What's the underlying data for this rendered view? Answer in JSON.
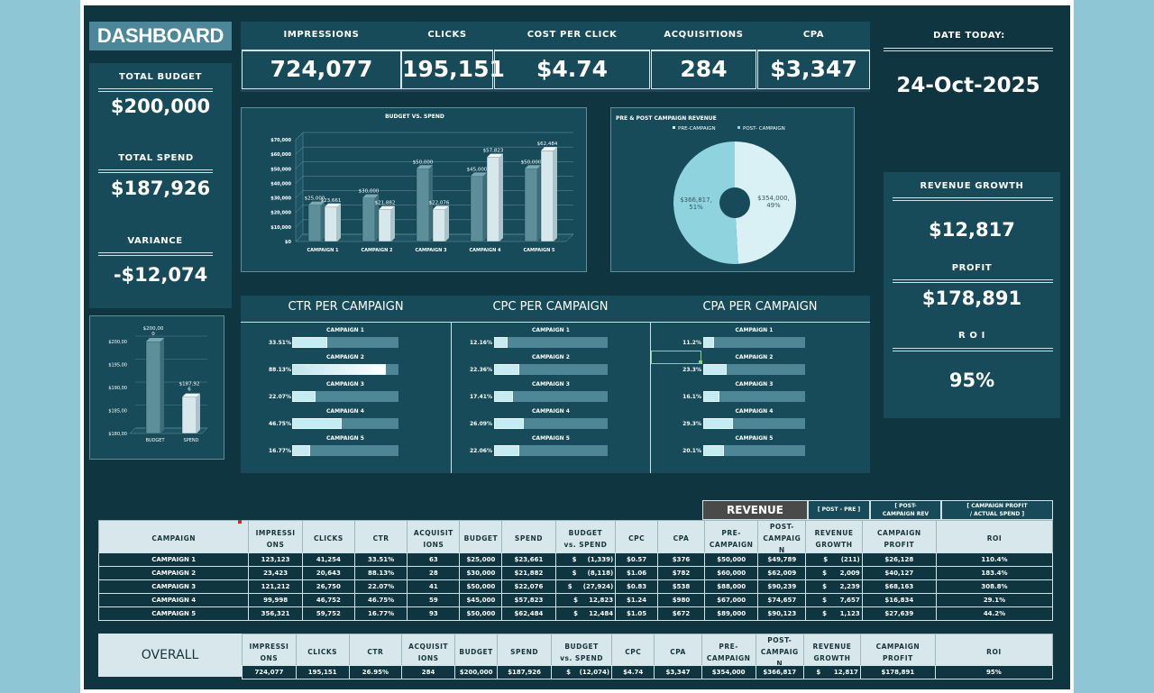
{
  "title": "DASHBOARD",
  "left_panel": {
    "total_budget_label": "TOTAL BUDGET",
    "total_budget": "$200,000",
    "total_spend_label": "TOTAL SPEND",
    "total_spend": "$187,926",
    "variance_label": "VARIANCE",
    "variance": "-$12,074"
  },
  "kpis": [
    {
      "label": "IMPRESSIONS",
      "value": "724,077"
    },
    {
      "label": "CLICKS",
      "value": "195,151"
    },
    {
      "label": "COST PER CLICK",
      "value": "$4.74"
    },
    {
      "label": "ACQUISITIONS",
      "value": "284"
    },
    {
      "label": "CPA",
      "value": "$3,347"
    }
  ],
  "date": {
    "label": "DATE TODAY:",
    "value": "24-Oct-2025"
  },
  "right_panel": {
    "revenue_growth_label": "REVENUE GROWTH",
    "revenue_growth": "$12,817",
    "profit_label": "PROFIT",
    "profit": "$178,891",
    "roi_label": "R O I",
    "roi": "95%"
  },
  "chart_data": [
    {
      "type": "bar",
      "title": "BUDGET VS. SPEND",
      "categories": [
        "CAMPAIGN 1",
        "CAMPAIGN 2",
        "CAMPAIGN 3",
        "CAMPAIGN 4",
        "CAMPAIGN 5"
      ],
      "series": [
        {
          "values": [
            25000,
            30000,
            50000,
            45000,
            50000
          ],
          "labels": [
            "$25,000",
            "$30,000",
            "$50,000",
            "$45,000",
            "$50,000"
          ],
          "color": "#5d8f9b"
        },
        {
          "values": [
            23661,
            21882,
            22076,
            57823,
            62484
          ],
          "labels": [
            "$23,661",
            "$21,882",
            "$22,076",
            "$57,823",
            "$62,484"
          ],
          "color": "#d7e8ec"
        }
      ],
      "ylim": [
        0,
        70000
      ],
      "yticks": [
        "$0",
        "$10,000",
        "$20,000",
        "$30,000",
        "$40,000",
        "$50,000",
        "$60,000",
        "$70,000"
      ],
      "grid": true
    },
    {
      "type": "pie",
      "title": "PRE & POST CAMPAIGN REVENUE",
      "legend": [
        "PRE-CAMPAIGN",
        "POST- CAMPAIGN"
      ],
      "values": [
        354000,
        366817
      ],
      "labels": [
        "$354,000,\n49%",
        "$366,817,\n51%"
      ],
      "colors": [
        "#d9f0f4",
        "#8ed3dd"
      ]
    },
    {
      "type": "bar",
      "categories": [
        "BUDGET",
        "SPEND"
      ],
      "values": [
        200000,
        187926
      ],
      "labels": [
        "$200,00\n0",
        "$187,92\n6"
      ],
      "ylim": [
        180000,
        200000
      ],
      "yticks": [
        "$180,00",
        "$185,00",
        "$190,00",
        "$195,00",
        "$200,00"
      ]
    }
  ],
  "per_campaign": {
    "ctr_title": "CTR PER CAMPAIGN",
    "cpc_title": "CPC PER CAMPAIGN",
    "cpa_title": "CPA PER CAMPAIGN",
    "campaigns": [
      "CAMPAIGN 1",
      "CAMPAIGN 2",
      "CAMPAIGN 3",
      "CAMPAIGN 4",
      "CAMPAIGN 5"
    ],
    "ctr_labels": [
      "33.51%",
      "88.13%",
      "22.07%",
      "46.75%",
      "16.77%"
    ],
    "ctr_fill": [
      0.33,
      0.88,
      0.22,
      0.47,
      0.17
    ],
    "cpc_labels": [
      "12.16%",
      "22.36%",
      "17.41%",
      "26.09%",
      "22.06%"
    ],
    "cpc_fill": [
      0.12,
      0.22,
      0.17,
      0.26,
      0.22
    ],
    "cpa_labels": [
      "11.2%",
      "23.3%",
      "16.1%",
      "29.3%",
      "20.1%"
    ],
    "cpa_fill": [
      0.11,
      0.23,
      0.16,
      0.29,
      0.2
    ]
  },
  "table": {
    "revenue_group": "REVENUE",
    "post_pre_group": "[ POST - PRE ]",
    "post_campaign_rev_group": "[ POST-\nCAMPAIGN REV",
    "roi_group": "[ CAMPAIGN PROFIT\n/ ACTUAL SPEND ]",
    "headers": [
      "CAMPAIGN",
      "IMPRESSI\nONS",
      "CLICKS",
      "CTR",
      "ACQUISIT\nIONS",
      "BUDGET",
      "SPEND",
      "BUDGET\nvs. SPEND",
      "CPC",
      "CPA",
      "PRE-\nCAMPAIGN",
      "POST-\nCAMPAIG\nN",
      "REVENUE\nGROWTH",
      "CAMPAIGN\nPROFIT",
      "ROI"
    ],
    "rows": [
      [
        "CAMPAIGN 1",
        "123,123",
        "41,254",
        "33.51%",
        "63",
        "$25,000",
        "$23,661",
        "$",
        "(1,339)",
        "$0.57",
        "$376",
        "$50,000",
        "$49,789",
        "$",
        "(211)",
        "$26,128",
        "110.4%"
      ],
      [
        "CAMPAIGN 2",
        "23,423",
        "20,643",
        "88.13%",
        "28",
        "$30,000",
        "$21,882",
        "$",
        "(8,118)",
        "$1.06",
        "$782",
        "$60,000",
        "$62,009",
        "$",
        "2,009",
        "$40,127",
        "183.4%"
      ],
      [
        "CAMPAIGN 3",
        "121,212",
        "26,750",
        "22.07%",
        "41",
        "$50,000",
        "$22,076",
        "$",
        "(27,924)",
        "$0.83",
        "$538",
        "$88,000",
        "$90,239",
        "$",
        "2,239",
        "$68,163",
        "308.8%"
      ],
      [
        "CAMPAIGN 4",
        "99,998",
        "46,752",
        "46.75%",
        "59",
        "$45,000",
        "$57,823",
        "$",
        "12,823",
        "$1.24",
        "$980",
        "$67,000",
        "$74,657",
        "$",
        "7,657",
        "$16,834",
        "29.1%"
      ],
      [
        "CAMPAIGN 5",
        "356,321",
        "59,752",
        "16.77%",
        "93",
        "$50,000",
        "$62,484",
        "$",
        "12,484",
        "$1.05",
        "$672",
        "$89,000",
        "$90,123",
        "$",
        "1,123",
        "$27,639",
        "44.2%"
      ]
    ],
    "overall_label": "OVERALL",
    "overall": [
      "724,077",
      "195,151",
      "26.95%",
      "284",
      "$200,000",
      "$187,926",
      "$",
      "(12,074)",
      "$4.74",
      "$3,347",
      "$354,000",
      "$366,817",
      "$",
      "12,817",
      "$178,891",
      "95%"
    ]
  }
}
